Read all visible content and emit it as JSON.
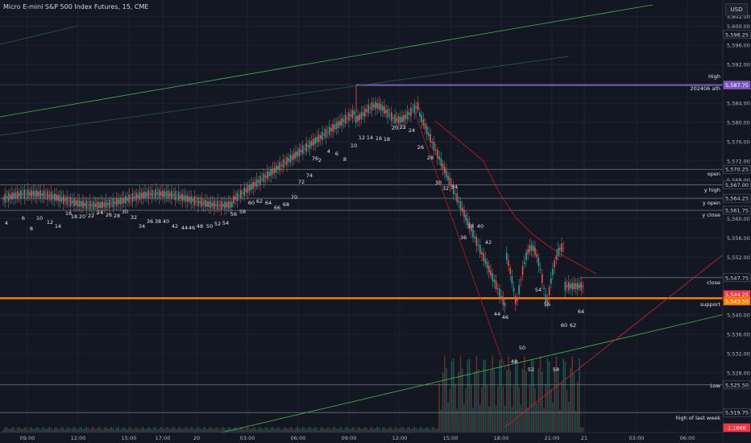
{
  "title": "Micro E-mini S&P 500 Index Futures, 15, CME",
  "currency": "USD",
  "price_axis": [
    "5,602.00",
    "5,600.00",
    "5,596.00",
    "5,592.00",
    "5,588.00",
    "5,584.00",
    "5,580.00",
    "5,576.00",
    "5,572.00",
    "5,568.00",
    "5,564.00",
    "5,560.00",
    "5,556.00",
    "5,552.00",
    "5,548.00",
    "5,540.00",
    "5,536.00",
    "5,532.00",
    "5,528.00",
    "5,520.00"
  ],
  "time_axis": [
    "09:00",
    "12:00",
    "15:00",
    "17:00",
    "20",
    "03:00",
    "06:00",
    "09:00",
    "12:00",
    "15:00",
    "18:00",
    "21:00",
    "21",
    "03:00",
    "06:00"
  ],
  "price_tags": [
    {
      "value": "5,598.25",
      "bg": "#131722",
      "fg": "#d1d4dc"
    },
    {
      "value": "5,587.75",
      "bg": "#7e57c2",
      "fg": "#ffffff"
    },
    {
      "value": "5,570.25",
      "bg": "#131722",
      "fg": "#d1d4dc"
    },
    {
      "value": "5,567.00",
      "bg": "#131722",
      "fg": "#d1d4dc"
    },
    {
      "value": "5,564.25",
      "bg": "#131722",
      "fg": "#d1d4dc"
    },
    {
      "value": "5,561.75",
      "bg": "#131722",
      "fg": "#d1d4dc"
    },
    {
      "value": "5,547.75",
      "bg": "#131722",
      "fg": "#d1d4dc"
    },
    {
      "value": "5,544.25",
      "bg": "#f23645",
      "fg": "#ffffff"
    },
    {
      "value": "5,543.50",
      "bg": "#f57c00",
      "fg": "#ffffff"
    },
    {
      "value": "5,525.50",
      "bg": "#131722",
      "fg": "#d1d4dc"
    },
    {
      "value": "5,519.75",
      "bg": "#131722",
      "fg": "#d1d4dc"
    },
    {
      "value": "1.166K",
      "bg": "#f23645",
      "fg": "#ffffff"
    }
  ],
  "level_labels": [
    "High",
    "202406 ath",
    "open",
    "y high",
    "y open",
    "y close",
    "close",
    "support",
    "Low",
    "high of last week"
  ],
  "wave_labels": [
    "4",
    "6",
    "8",
    "10",
    "12",
    "14",
    "16",
    "18",
    "20",
    "22",
    "24",
    "26",
    "28",
    "30",
    "32",
    "34",
    "36",
    "38",
    "40",
    "42",
    "44",
    "46",
    "48",
    "50",
    "52",
    "54",
    "56",
    "58",
    "60",
    "62",
    "64",
    "66",
    "68",
    "70",
    "72",
    "74",
    "76",
    "2",
    "4",
    "6",
    "8",
    "10",
    "12",
    "14",
    "16",
    "18",
    "20",
    "22",
    "24",
    "26",
    "28",
    "30",
    "32",
    "34",
    "36",
    "38",
    "40",
    "42",
    "44",
    "46",
    "48",
    "50",
    "52",
    "54",
    "56",
    "58",
    "60",
    "62",
    "64"
  ],
  "colors": {
    "background": "#131722",
    "up": "#26a69a",
    "down": "#ef5350",
    "support": "#f57c00",
    "ath": "#7e57c2",
    "trend": "#4caf50"
  }
}
